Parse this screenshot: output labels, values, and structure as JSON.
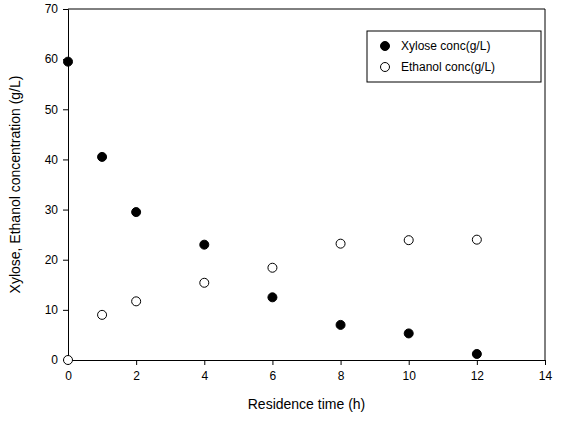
{
  "chart_data": {
    "type": "scatter",
    "x_label": "Residence time (h)",
    "y_label": "Xylose, Ethanol concentration (g/L)",
    "x": [
      0,
      1,
      2,
      4,
      6,
      8,
      10,
      12
    ],
    "series": [
      {
        "name": "Xylose conc(g/L)",
        "color": "#000000",
        "marker": "circle",
        "values": [
          59.5,
          40.5,
          29.5,
          23,
          12.5,
          7,
          5.3,
          1.2
        ]
      },
      {
        "name": "Ethanol conc(g/L)",
        "color": "#000000",
        "marker": "circle-open",
        "values": [
          0,
          9,
          11.7,
          15.4,
          18.4,
          23.2,
          23.9,
          24
        ]
      }
    ],
    "xlim": [
      0,
      14
    ],
    "xticks": [
      0,
      2,
      4,
      6,
      8,
      10,
      12,
      14
    ],
    "ylim": [
      0,
      70
    ],
    "yticks": [
      0,
      10,
      20,
      30,
      40,
      50,
      60,
      70
    ],
    "legend": "upper-right"
  }
}
